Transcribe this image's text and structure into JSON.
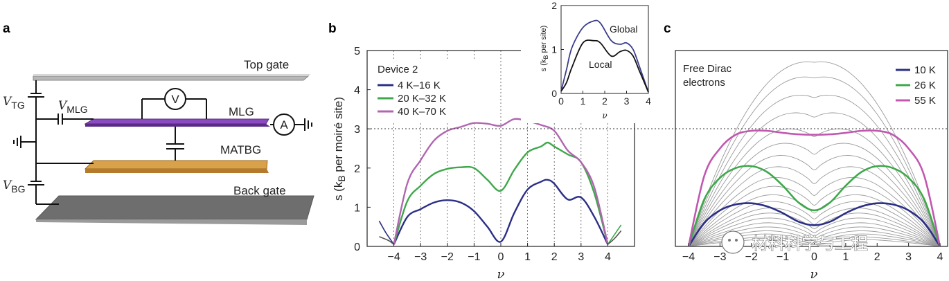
{
  "panel_labels": {
    "a": "a",
    "b": "b",
    "c": "c"
  },
  "panel_a": {
    "top_gate": "Top gate",
    "back_gate": "Back gate",
    "mlg": "MLG",
    "matbg": "MATBG",
    "voltmeter": "V",
    "ammeter": "A",
    "v_tg": {
      "main": "V",
      "sub": "TG"
    },
    "v_mlg": {
      "main": "V",
      "sub": "MLG"
    },
    "v_bg": {
      "main": "V",
      "sub": "BG"
    },
    "colors": {
      "mlg": "#6a2a9a",
      "matbg": "#c98a36",
      "gate": "#9a9a9a"
    }
  },
  "watermark": "材料科学与工程",
  "chart_data": [
    {
      "panel": "b",
      "type": "line",
      "title": "",
      "xlabel": "ν",
      "ylabel": "s (kB per moiré site)",
      "ylabel_parts": {
        "pre": "s (k",
        "sub": "B",
        "post": " per moiré site)"
      },
      "xlim": [
        -5,
        5
      ],
      "ylim": [
        0,
        5
      ],
      "xticks": [
        -4,
        -3,
        -2,
        -1,
        0,
        1,
        2,
        3,
        4
      ],
      "yticks": [
        0,
        1,
        2,
        3,
        4,
        5
      ],
      "grid": "dotted vertical lines at integer ν; dotted horizontal reference at s = 3",
      "legend_title": "Device 2",
      "legend_position": "top-left",
      "series": [
        {
          "name": "4 K–16 K",
          "color": "#2b2f86",
          "x": [
            -4,
            -3.5,
            -3,
            -2.5,
            -2,
            -1.5,
            -1,
            -0.5,
            0,
            0.5,
            1,
            1.5,
            1.75,
            2,
            2.5,
            3,
            3.5,
            4
          ],
          "y": [
            0.05,
            0.75,
            0.95,
            1.12,
            1.18,
            1.12,
            0.9,
            0.5,
            0.12,
            0.85,
            1.45,
            1.65,
            1.7,
            1.6,
            1.2,
            1.25,
            0.75,
            0.05
          ]
        },
        {
          "name": "20 K–32 K",
          "color": "#3ea84a",
          "x": [
            -4,
            -3.5,
            -3,
            -2.5,
            -2,
            -1.5,
            -1,
            -0.5,
            0,
            0.5,
            1,
            1.5,
            1.75,
            2,
            2.5,
            3,
            3.5,
            4
          ],
          "y": [
            0.05,
            1.15,
            1.55,
            1.85,
            1.98,
            2.02,
            2.0,
            1.7,
            1.42,
            1.95,
            2.4,
            2.55,
            2.65,
            2.55,
            2.35,
            2.15,
            1.35,
            0.05
          ]
        },
        {
          "name": "40 K–70 K",
          "color": "#b066b0",
          "x": [
            -4,
            -3.5,
            -3,
            -2.5,
            -2,
            -1.5,
            -1,
            -0.5,
            0,
            0.5,
            1,
            1.5,
            2,
            2.5,
            3,
            3.5,
            4
          ],
          "y": [
            0.05,
            1.6,
            2.2,
            2.7,
            2.95,
            3.05,
            3.15,
            3.13,
            3.08,
            3.25,
            3.2,
            3.1,
            2.95,
            2.45,
            2.15,
            1.5,
            0.05
          ]
        }
      ],
      "tails": [
        {
          "x": [
            -4.55,
            -4.3,
            -4.0
          ],
          "y": [
            0.65,
            0.35,
            0.05
          ],
          "color": "#2b2f86"
        },
        {
          "x": [
            -4.55,
            -4.2,
            -4.0
          ],
          "y": [
            0.25,
            0.15,
            0.05
          ],
          "color": "#555555"
        },
        {
          "x": [
            4.0,
            4.3,
            4.5
          ],
          "y": [
            0.05,
            0.35,
            0.55
          ],
          "color": "#3ea84a"
        },
        {
          "x": [
            4.0,
            4.25,
            4.5
          ],
          "y": [
            0.05,
            0.2,
            0.4
          ],
          "color": "#555555"
        }
      ],
      "inset": {
        "type": "line",
        "xlabel": "ν",
        "ylabel": "s (kB per site)",
        "ylabel_parts": {
          "pre": "s (k",
          "sub": "B",
          "post": " per site)"
        },
        "xlim": [
          0,
          4
        ],
        "ylim": [
          0,
          2
        ],
        "xticks": [
          0,
          1,
          2,
          3,
          4
        ],
        "yticks": [
          0,
          1,
          2
        ],
        "series": [
          {
            "name": "Global",
            "color": "#3a3d8a",
            "x": [
              0,
              0.25,
              0.5,
              1.0,
              1.5,
              1.8,
              2.3,
              2.7,
              3.0,
              3.3,
              3.6,
              4.0
            ],
            "y": [
              0.05,
              0.55,
              1.05,
              1.5,
              1.65,
              1.6,
              1.2,
              1.12,
              1.15,
              1.0,
              0.6,
              0.03
            ]
          },
          {
            "name": "Local",
            "color": "#111111",
            "x": [
              0,
              0.25,
              0.5,
              1.0,
              1.5,
              1.8,
              2.3,
              2.7,
              3.0,
              3.3,
              3.6,
              4.0
            ],
            "y": [
              0.05,
              0.25,
              0.6,
              1.15,
              1.2,
              1.15,
              0.85,
              0.95,
              0.98,
              0.85,
              0.5,
              0.03
            ]
          }
        ]
      }
    },
    {
      "panel": "c",
      "type": "line",
      "title": "",
      "xlabel": "ν",
      "xlim": [
        -4,
        4
      ],
      "ylim": [
        0,
        5
      ],
      "xticks": [
        -4,
        -3,
        -2,
        -1,
        0,
        1,
        2,
        3,
        4
      ],
      "grid": "dotted horizontal reference at s = 3",
      "annotation": [
        "Free Dirac",
        "electrons"
      ],
      "legend_position": "top-right",
      "series": [
        {
          "name": "10 K",
          "color": "#2b2f86",
          "x": [
            -4,
            -3.5,
            -3,
            -2.5,
            -2,
            -1.5,
            -1,
            -0.5,
            0,
            0.5,
            1,
            1.5,
            2,
            2.5,
            3,
            3.5,
            4
          ],
          "y": [
            0,
            0.6,
            0.92,
            1.07,
            1.1,
            1.02,
            0.85,
            0.63,
            0.54,
            0.63,
            0.85,
            1.02,
            1.1,
            1.07,
            0.92,
            0.6,
            0
          ]
        },
        {
          "name": "26 K",
          "color": "#3ea84a",
          "x": [
            -4,
            -3.5,
            -3,
            -2.5,
            -2,
            -1.5,
            -1,
            -0.5,
            0,
            0.5,
            1,
            1.5,
            2,
            2.5,
            3,
            3.5,
            4
          ],
          "y": [
            0,
            1.2,
            1.75,
            2.0,
            2.05,
            1.9,
            1.55,
            1.12,
            0.92,
            1.12,
            1.55,
            1.9,
            2.05,
            2.0,
            1.75,
            1.2,
            0
          ]
        },
        {
          "name": "55 K",
          "color": "#c257b0",
          "x": [
            -4,
            -3.5,
            -3,
            -2.5,
            -2,
            -1.5,
            -1,
            -0.5,
            0,
            0.5,
            1,
            1.5,
            2,
            2.5,
            3,
            3.5,
            4
          ],
          "y": [
            0,
            1.8,
            2.5,
            2.85,
            2.95,
            2.95,
            2.9,
            2.86,
            2.85,
            2.86,
            2.9,
            2.95,
            2.95,
            2.85,
            2.5,
            1.8,
            0
          ]
        }
      ],
      "background_family": {
        "color": "#9a9a9a",
        "center_values": [
          0.02,
          0.05,
          0.09,
          0.14,
          0.2,
          0.27,
          0.35,
          0.45,
          0.56,
          0.7,
          0.85,
          1.05,
          1.3,
          1.6,
          1.95,
          2.35,
          2.8,
          3.3,
          3.8,
          4.3,
          4.7
        ],
        "peak_values": [
          0.22,
          0.3,
          0.4,
          0.5,
          0.62,
          0.75,
          0.9,
          1.05,
          1.2,
          1.4,
          1.6,
          1.85,
          2.1,
          2.4,
          2.7,
          3.0,
          3.35,
          3.7,
          4.1,
          4.5,
          4.85
        ]
      }
    }
  ]
}
